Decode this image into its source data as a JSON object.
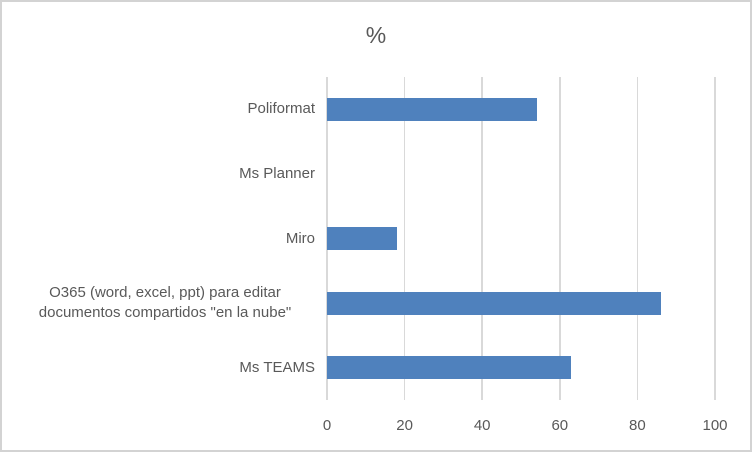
{
  "chart": {
    "colors": {
      "bar_fill": "#4f81bd",
      "gridline": "#d9d9d9",
      "text": "#595959",
      "frame_border": "#d3d3d3",
      "background": "#ffffff"
    }
  },
  "chart_data": {
    "type": "bar",
    "orientation": "horizontal",
    "title": "%",
    "xlabel": "",
    "ylabel": "",
    "categories": [
      "Poliformat",
      "Ms Planner",
      "Miro",
      "O365 (word, excel, ppt) para editar documentos compartidos \"en la nube\"",
      "Ms TEAMS"
    ],
    "values": [
      54,
      0,
      18,
      86,
      63
    ],
    "xlim": [
      0,
      100
    ],
    "xticks": [
      0,
      20,
      40,
      60,
      80,
      100
    ],
    "grid": true,
    "legend": false,
    "data_labels": false
  }
}
